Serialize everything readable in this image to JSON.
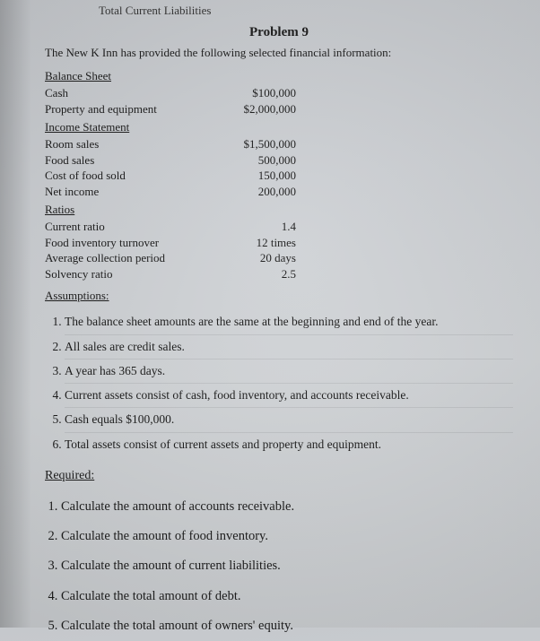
{
  "topcut": "Total Current Liabilities",
  "problem_title": "Problem 9",
  "intro": "The New K Inn has provided the following selected financial information:",
  "balance_sheet": {
    "heading": "Balance Sheet",
    "rows": [
      {
        "label": "Cash",
        "value": "$100,000"
      },
      {
        "label": "Property and equipment",
        "value": "$2,000,000"
      }
    ]
  },
  "income_statement": {
    "heading": "Income Statement",
    "rows": [
      {
        "label": "Room sales",
        "value": "$1,500,000"
      },
      {
        "label": "Food sales",
        "value": "500,000"
      },
      {
        "label": "Cost of food sold",
        "value": "150,000"
      },
      {
        "label": "Net income",
        "value": "200,000"
      }
    ]
  },
  "ratios": {
    "heading": "Ratios",
    "rows": [
      {
        "label": "Current ratio",
        "value": "1.4"
      },
      {
        "label": "Food inventory turnover",
        "value": "12 times"
      },
      {
        "label": "Average collection period",
        "value": "20 days"
      },
      {
        "label": "Solvency ratio",
        "value": "2.5"
      }
    ]
  },
  "assumptions": {
    "heading": "Assumptions:",
    "items": [
      "The balance sheet amounts are the same at the beginning and end of the year.",
      "All sales are credit sales.",
      "A year has 365 days.",
      "Current assets consist of cash, food inventory, and accounts receivable.",
      "Cash equals $100,000.",
      "Total assets consist of current assets and property and equipment."
    ]
  },
  "required": {
    "heading": "Required:",
    "items": [
      "Calculate the amount of accounts receivable.",
      "Calculate the amount of food inventory.",
      "Calculate the amount of current liabilities.",
      "Calculate the total amount of debt.",
      "Calculate the total amount of owners' equity."
    ]
  }
}
